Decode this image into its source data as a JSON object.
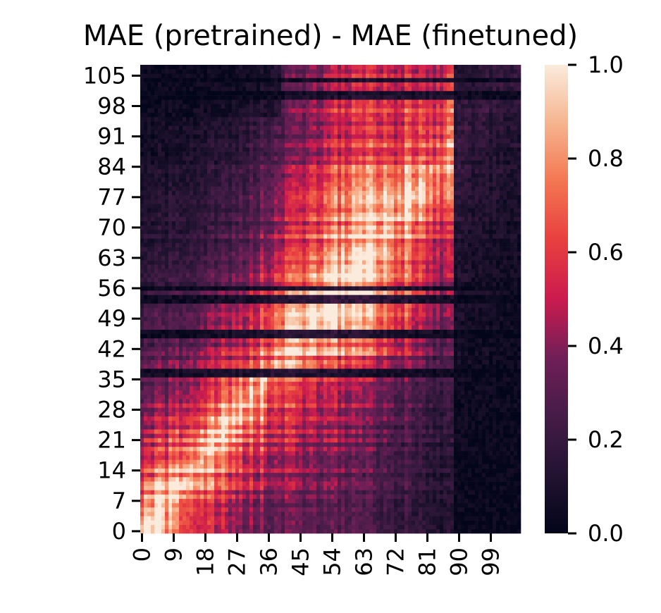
{
  "chart_data": {
    "type": "heatmap",
    "title": "MAE (pretrained) - MAE (finetuned)",
    "xlabel": "",
    "ylabel": "",
    "n_cols": 108,
    "n_rows": 108,
    "x_ticks": [
      "0",
      "9",
      "18",
      "27",
      "36",
      "45",
      "54",
      "63",
      "72",
      "81",
      "90",
      "99"
    ],
    "y_ticks": [
      "0",
      "7",
      "14",
      "21",
      "28",
      "35",
      "42",
      "49",
      "56",
      "63",
      "70",
      "77",
      "84",
      "91",
      "98",
      "105"
    ],
    "y_origin": "bottom",
    "colormap": "rocket",
    "vmin": 0.0,
    "vmax": 1.0,
    "colorbar_ticks": [
      "0.0",
      "0.2",
      "0.4",
      "0.6",
      "0.8",
      "1.0"
    ],
    "colors": {
      "low": "#03051a",
      "mid": "#cb1b4f",
      "high": "#faebdd"
    },
    "value_pattern": "approximate: highest values (~0.8-1.0) along lower-left diagonal (cols/rows 0-35), moderate (~0.5-0.7) band extending up-right to cols ~50-80, low (~0.0-0.2) for columns > 88 and several dark horizontal stripes near rows 36, 45, 53-56, 100-104"
  }
}
